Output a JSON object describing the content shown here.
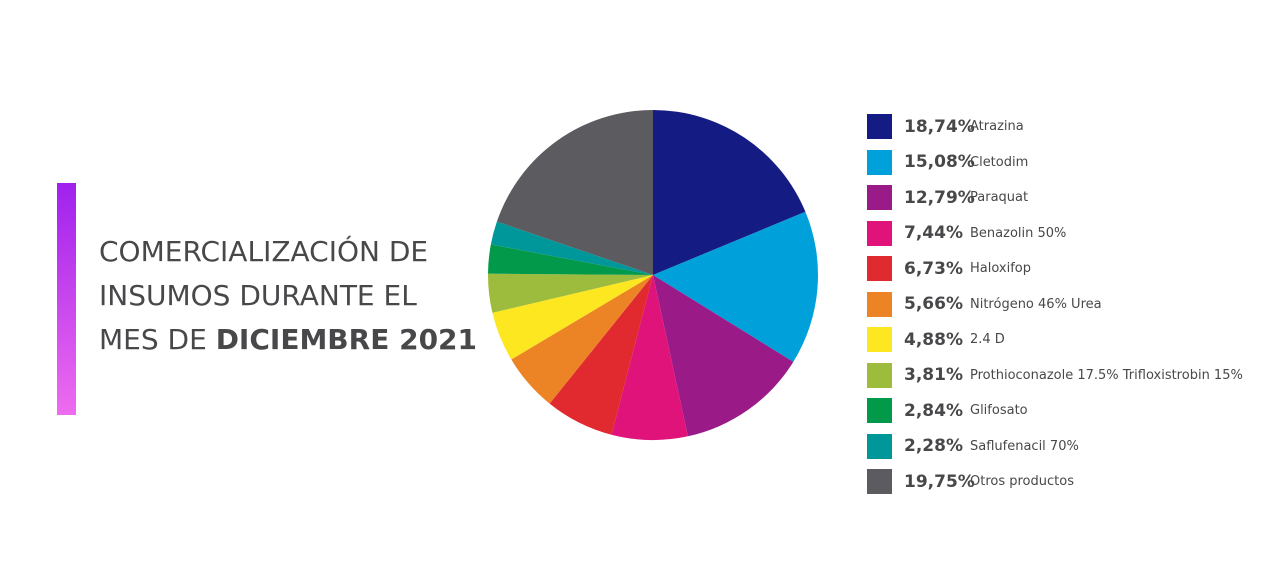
{
  "title": {
    "line1": "COMERCIALIZACIÓN DE",
    "line2": "INSUMOS DURANTE EL",
    "line3_prefix": "MES DE ",
    "line3_bold": "DICIEMBRE 2021"
  },
  "colors": {
    "accent_start": "#a021ee",
    "accent_end": "#ee6cee"
  },
  "chart_data": {
    "type": "pie",
    "legend": "right",
    "slices": [
      {
        "label": "Atrazina",
        "value": 18.74,
        "display": "18,74%",
        "color": "#141c84"
      },
      {
        "label": "Cletodim",
        "value": 15.08,
        "display": "15,08%",
        "color": "#00a0da"
      },
      {
        "label": "Paraquat",
        "value": 12.79,
        "display": "12,79%",
        "color": "#9a1a88"
      },
      {
        "label": "Benazolin 50%",
        "value": 7.44,
        "display": "7,44%",
        "color": "#e0137a"
      },
      {
        "label": "Haloxifop",
        "value": 6.73,
        "display": "6,73%",
        "color": "#e02a30"
      },
      {
        "label": "Nitrógeno 46% Urea",
        "value": 5.66,
        "display": "5,66%",
        "color": "#ec8324"
      },
      {
        "label": "2.4 D",
        "value": 4.88,
        "display": "4,88%",
        "color": "#fde720"
      },
      {
        "label": "Prothioconazole 17.5% Trifloxistrobin 15%",
        "value": 3.81,
        "display": "3,81%",
        "color": "#9dbb3c"
      },
      {
        "label": "Glifosato",
        "value": 2.84,
        "display": "2,84%",
        "color": "#03994a"
      },
      {
        "label": "Saflufenacil 70%",
        "value": 2.28,
        "display": "2,28%",
        "color": "#00979a"
      },
      {
        "label": "Otros productos",
        "value": 19.75,
        "display": "19,75%",
        "color": "#5b5b60"
      }
    ]
  }
}
